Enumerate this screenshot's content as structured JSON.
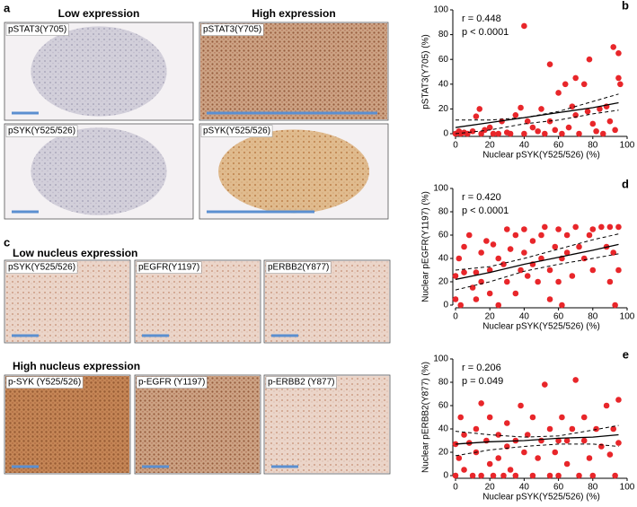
{
  "panels": {
    "a": {
      "label": "a",
      "headers": [
        "Low expression",
        "High expression"
      ],
      "images": [
        "pSTAT3(Y705)",
        "pSTAT3(Y705)",
        "pSYK(Y525/526)",
        "pSYK(Y525/526)"
      ]
    },
    "c": {
      "label": "c",
      "headers": [
        "Low nucleus expression",
        "High nucleus expression"
      ],
      "images": [
        "pSYK(Y525/526)",
        "pEGFR(Y1197)",
        "pERBB2(Y877)",
        "p-SYK (Y525/526)",
        "p-EGFR (Y1197)",
        "p-ERBB2 (Y877)"
      ]
    }
  },
  "chart_data": [
    {
      "type": "scatter",
      "panel_label": "b",
      "stats": [
        "r = 0.448",
        "p < 0.0001"
      ],
      "x_label": "Nuclear pSYK(Y525/526) (%)",
      "y_label": "pSTAT3(Y705) (%)",
      "color": "#e8262a",
      "xlim": [
        0,
        100
      ],
      "ylim": [
        0,
        100
      ],
      "xticks": [
        0,
        20,
        40,
        60,
        80,
        100
      ],
      "yticks": [
        0,
        20,
        40,
        60,
        80,
        100
      ],
      "x": [
        0,
        2,
        3,
        5,
        7,
        10,
        12,
        14,
        15,
        17,
        20,
        22,
        25,
        27,
        30,
        32,
        35,
        38,
        40,
        40,
        42,
        45,
        48,
        50,
        52,
        55,
        55,
        58,
        60,
        62,
        64,
        66,
        68,
        70,
        72,
        75,
        77,
        78,
        80,
        82,
        84,
        86,
        88,
        90,
        92,
        93,
        95,
        95,
        96,
        70
      ],
      "y": [
        0,
        2,
        0,
        1,
        0,
        2,
        14,
        20,
        0,
        3,
        5,
        0,
        0,
        10,
        1,
        0,
        15,
        21,
        87,
        0,
        10,
        5,
        2,
        20,
        0,
        56,
        10,
        3,
        33,
        0,
        40,
        5,
        22,
        15,
        0,
        40,
        18,
        60,
        8,
        2,
        20,
        0,
        22,
        10,
        70,
        3,
        45,
        65,
        40,
        45
      ],
      "fit": {
        "x": [
          0,
          20,
          40,
          60,
          80,
          95
        ],
        "y": [
          5,
          9,
          13,
          17,
          21,
          25
        ],
        "upper": [
          11,
          11,
          13,
          18,
          26,
          32
        ],
        "lower": [
          0,
          3,
          8,
          11,
          16,
          19
        ]
      }
    },
    {
      "type": "scatter",
      "panel_label": "d",
      "stats": [
        "r = 0.420",
        "p < 0.0001"
      ],
      "x_label": "Nuclear pSYK(Y525/526) (%)",
      "y_label": "Nuclear pEGFR(Y1197) (%)",
      "color": "#e8262a",
      "xlim": [
        0,
        100
      ],
      "ylim": [
        0,
        100
      ],
      "xticks": [
        0,
        20,
        40,
        60,
        80,
        100
      ],
      "yticks": [
        0,
        20,
        40,
        60,
        80,
        100
      ],
      "x": [
        0,
        0,
        2,
        3,
        5,
        5,
        8,
        10,
        12,
        12,
        15,
        15,
        18,
        20,
        20,
        22,
        25,
        25,
        28,
        30,
        30,
        32,
        35,
        35,
        38,
        40,
        40,
        42,
        45,
        45,
        48,
        50,
        50,
        52,
        55,
        55,
        58,
        60,
        60,
        62,
        65,
        65,
        68,
        70,
        72,
        75,
        78,
        80,
        80,
        85,
        88,
        90,
        90,
        92,
        95,
        95,
        93,
        62
      ],
      "y": [
        25,
        5,
        40,
        0,
        28,
        50,
        60,
        15,
        28,
        5,
        20,
        45,
        55,
        30,
        10,
        52,
        0,
        40,
        35,
        65,
        20,
        48,
        60,
        10,
        30,
        65,
        45,
        25,
        55,
        35,
        20,
        60,
        40,
        67,
        30,
        5,
        50,
        65,
        20,
        40,
        60,
        45,
        25,
        67,
        50,
        40,
        60,
        65,
        30,
        67,
        50,
        67,
        20,
        45,
        67,
        30,
        0,
        0
      ],
      "fit": {
        "x": [
          0,
          20,
          40,
          60,
          80,
          95
        ],
        "y": [
          22,
          28,
          35,
          41,
          47,
          52
        ],
        "upper": [
          30,
          33,
          40,
          48,
          56,
          61
        ],
        "lower": [
          13,
          20,
          29,
          35,
          40,
          44
        ]
      }
    },
    {
      "type": "scatter",
      "panel_label": "e",
      "stats": [
        "r = 0.206",
        "p = 0.049"
      ],
      "x_label": "Nuclear pSYK(Y525/526) (%)",
      "y_label": "Nuclear pERBB2(Y877) (%)",
      "color": "#e8262a",
      "xlim": [
        0,
        100
      ],
      "ylim": [
        0,
        100
      ],
      "xticks": [
        0,
        20,
        40,
        60,
        80,
        100
      ],
      "yticks": [
        0,
        20,
        40,
        60,
        80,
        100
      ],
      "x": [
        0,
        0,
        2,
        3,
        5,
        5,
        8,
        10,
        12,
        12,
        15,
        15,
        18,
        20,
        20,
        22,
        25,
        25,
        28,
        30,
        30,
        32,
        35,
        35,
        38,
        40,
        42,
        45,
        45,
        48,
        50,
        52,
        55,
        55,
        58,
        60,
        60,
        62,
        65,
        65,
        68,
        70,
        72,
        75,
        75,
        78,
        80,
        82,
        85,
        88,
        90,
        92,
        95,
        95,
        93
      ],
      "y": [
        0,
        27,
        15,
        50,
        5,
        35,
        28,
        0,
        20,
        40,
        62,
        0,
        30,
        10,
        50,
        0,
        35,
        15,
        0,
        45,
        25,
        5,
        30,
        0,
        60,
        20,
        35,
        0,
        50,
        15,
        30,
        78,
        0,
        40,
        20,
        30,
        0,
        50,
        10,
        30,
        40,
        82,
        0,
        30,
        50,
        15,
        0,
        40,
        25,
        60,
        18,
        40,
        65,
        28,
        0
      ],
      "fit": {
        "x": [
          0,
          20,
          40,
          60,
          80,
          95
        ],
        "y": [
          27,
          29,
          30,
          32,
          33,
          35
        ],
        "upper": [
          38,
          35,
          33,
          34,
          39,
          43
        ],
        "lower": [
          17,
          22,
          25,
          27,
          27,
          25
        ]
      }
    }
  ]
}
